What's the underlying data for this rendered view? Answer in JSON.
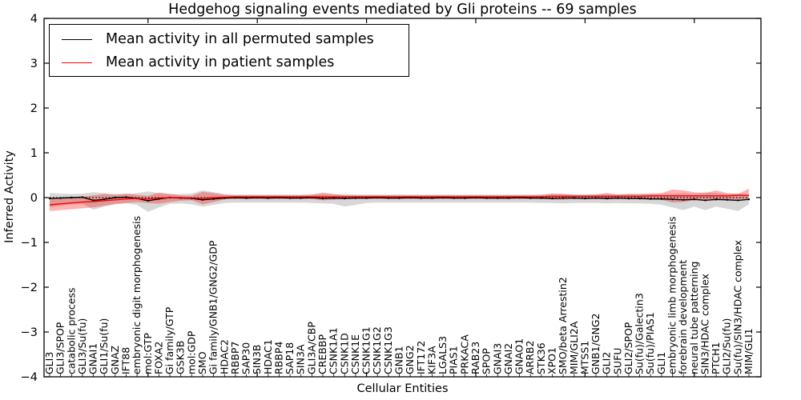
{
  "figure": {
    "title": "Hedgehog signaling events mediated by Gli proteins -- 69 samples",
    "xlabel": "Cellular Entities",
    "ylabel": "Inferred Activity"
  },
  "chart_data": {
    "type": "line",
    "title": "Hedgehog signaling events mediated by Gli proteins -- 69 samples",
    "xlabel": "Cellular Entities",
    "ylabel": "Inferred Activity",
    "ylim": [
      -4,
      4
    ],
    "yticks": [
      4,
      3,
      2,
      1,
      0,
      -1,
      -2,
      -3,
      -4
    ],
    "grid": false,
    "zero_reference_line": true,
    "legend_position": "upper left",
    "categories": [
      "GLI3",
      "GLI3/SPOP",
      "catabolic process",
      "GLI3/Su(fu)",
      "GNAI1",
      "GLI1/Su(fu)",
      "GNAZ",
      "IFT88",
      "embryonic digit morphogenesis",
      "mol:GTP",
      "FOXA2",
      "Gi family/GTP",
      "GSK3B",
      "mol:GDP",
      "SMO",
      "Gi family/GNB1/GNG2/GDP",
      "HDAC2",
      "RBBP7",
      "SAP30",
      "SIN3B",
      "HDAC1",
      "RBBP4",
      "SAP18",
      "SIN3A",
      "GLI3A/CBP",
      "CREBBP",
      "CSNK1A1",
      "CSNK1D",
      "CSNK1E",
      "CSNK1G1",
      "CSNK1G2",
      "CSNK1G3",
      "GNB1",
      "GNG2",
      "IFT172",
      "KIF3A",
      "LGALS3",
      "PIAS1",
      "PRKACA",
      "RAB23",
      "SPOP",
      "GNAI3",
      "GNAI2",
      "GNAO1",
      "ARRB2",
      "STK36",
      "XPO1",
      "SMO/beta Arrestin2",
      "MIM/GLI2A",
      "MTSS1",
      "GNB1/GNG2",
      "GLI2",
      "SUFU",
      "GLI2/SPOP",
      "Su(fu)/Galectin3",
      "Su(fu)/PIAS1",
      "GLI1",
      "embryonic limb morphogenesis",
      "forebrain development",
      "neural tube patterning",
      "SIN3/HDAC complex",
      "PTCH1",
      "GLI2/Su(fu)",
      "Su(fu)/SIN3/HDAC complex",
      "MIM/GLI1"
    ],
    "series": [
      {
        "id": "permuted",
        "name": "Mean activity in all permuted samples",
        "color": "#000000",
        "band_color": "rgba(110,110,110,0.28)",
        "markers": true,
        "values": [
          -0.02,
          -0.01,
          0.0,
          0.01,
          -0.06,
          -0.04,
          0.0,
          0.01,
          -0.02,
          -0.07,
          -0.03,
          0.0,
          -0.01,
          -0.02,
          -0.05,
          -0.03,
          -0.01,
          0.0,
          -0.01,
          0.0,
          -0.01,
          0.0,
          -0.01,
          -0.01,
          0.0,
          -0.02,
          -0.01,
          -0.02,
          -0.01,
          -0.01,
          0.0,
          -0.01,
          -0.01,
          0.0,
          -0.01,
          -0.01,
          0.0,
          -0.01,
          -0.01,
          0.0,
          -0.01,
          -0.01,
          -0.01,
          0.0,
          -0.01,
          -0.01,
          -0.02,
          -0.01,
          -0.01,
          -0.02,
          -0.01,
          -0.02,
          -0.01,
          -0.02,
          -0.02,
          -0.03,
          -0.03,
          -0.04,
          -0.05,
          -0.04,
          -0.06,
          -0.04,
          -0.05,
          -0.06,
          -0.04
        ],
        "upper": [
          0.1,
          0.09,
          0.08,
          0.09,
          0.12,
          0.1,
          0.08,
          0.08,
          0.1,
          0.14,
          0.1,
          0.08,
          0.08,
          0.09,
          0.16,
          0.12,
          0.08,
          0.07,
          0.07,
          0.07,
          0.07,
          0.07,
          0.07,
          0.07,
          0.08,
          0.08,
          0.07,
          0.08,
          0.07,
          0.07,
          0.07,
          0.07,
          0.07,
          0.07,
          0.07,
          0.07,
          0.07,
          0.07,
          0.07,
          0.07,
          0.07,
          0.07,
          0.07,
          0.07,
          0.07,
          0.07,
          0.08,
          0.08,
          0.07,
          0.07,
          0.07,
          0.08,
          0.07,
          0.08,
          0.08,
          0.08,
          0.08,
          0.08,
          0.1,
          0.08,
          0.12,
          0.1,
          0.08,
          0.1,
          0.06
        ],
        "lower": [
          -0.22,
          -0.18,
          -0.15,
          -0.14,
          -0.27,
          -0.2,
          -0.14,
          -0.13,
          -0.16,
          -0.32,
          -0.22,
          -0.14,
          -0.13,
          -0.15,
          -0.2,
          -0.16,
          -0.12,
          -0.11,
          -0.11,
          -0.11,
          -0.11,
          -0.11,
          -0.11,
          -0.11,
          -0.12,
          -0.13,
          -0.14,
          -0.2,
          -0.16,
          -0.12,
          -0.11,
          -0.11,
          -0.11,
          -0.11,
          -0.11,
          -0.11,
          -0.11,
          -0.11,
          -0.11,
          -0.11,
          -0.11,
          -0.11,
          -0.11,
          -0.11,
          -0.11,
          -0.12,
          -0.12,
          -0.13,
          -0.12,
          -0.12,
          -0.12,
          -0.13,
          -0.12,
          -0.13,
          -0.13,
          -0.14,
          -0.16,
          -0.22,
          -0.28,
          -0.2,
          -0.28,
          -0.2,
          -0.25,
          -0.3,
          -0.15
        ]
      },
      {
        "id": "patient",
        "name": "Mean activity in patient samples",
        "color": "#ff0000",
        "band_color": "rgba(255,0,0,0.30)",
        "markers": false,
        "values": [
          -0.16,
          -0.14,
          -0.12,
          -0.1,
          -0.09,
          -0.07,
          -0.05,
          -0.03,
          -0.02,
          -0.03,
          -0.01,
          0.0,
          0.0,
          -0.01,
          -0.02,
          0.0,
          0.01,
          0.02,
          0.02,
          0.02,
          0.02,
          0.02,
          0.02,
          0.02,
          0.02,
          0.02,
          0.02,
          0.02,
          0.02,
          0.02,
          0.02,
          0.02,
          0.02,
          0.02,
          0.02,
          0.02,
          0.02,
          0.02,
          0.02,
          0.02,
          0.02,
          0.02,
          0.02,
          0.02,
          0.02,
          0.02,
          0.03,
          0.03,
          0.03,
          0.03,
          0.03,
          0.03,
          0.03,
          0.03,
          0.03,
          0.04,
          0.04,
          0.04,
          0.04,
          0.04,
          0.04,
          0.04,
          0.04,
          0.05,
          0.05
        ],
        "upper": [
          -0.03,
          -0.02,
          0.0,
          0.02,
          0.05,
          0.08,
          0.06,
          0.09,
          0.06,
          0.04,
          0.11,
          0.08,
          0.05,
          0.04,
          0.13,
          0.1,
          0.06,
          0.05,
          0.05,
          0.05,
          0.05,
          0.05,
          0.05,
          0.05,
          0.06,
          0.11,
          0.08,
          0.05,
          0.05,
          0.05,
          0.05,
          0.05,
          0.05,
          0.05,
          0.05,
          0.05,
          0.05,
          0.05,
          0.05,
          0.05,
          0.05,
          0.05,
          0.05,
          0.05,
          0.05,
          0.06,
          0.09,
          0.08,
          0.06,
          0.06,
          0.07,
          0.1,
          0.07,
          0.08,
          0.08,
          0.09,
          0.1,
          0.18,
          0.16,
          0.12,
          0.1,
          0.16,
          0.1,
          0.08,
          0.2
        ],
        "lower": [
          -0.3,
          -0.28,
          -0.26,
          -0.24,
          -0.22,
          -0.18,
          -0.15,
          -0.12,
          -0.1,
          -0.12,
          -0.14,
          -0.1,
          -0.07,
          -0.06,
          -0.15,
          -0.1,
          -0.04,
          -0.03,
          -0.03,
          -0.03,
          -0.03,
          -0.03,
          -0.03,
          -0.03,
          -0.03,
          -0.06,
          -0.05,
          -0.03,
          -0.03,
          -0.03,
          -0.03,
          -0.03,
          -0.03,
          -0.03,
          -0.03,
          -0.03,
          -0.03,
          -0.03,
          -0.03,
          -0.03,
          -0.03,
          -0.03,
          -0.03,
          -0.03,
          -0.03,
          -0.03,
          -0.04,
          -0.05,
          -0.03,
          -0.03,
          -0.03,
          -0.04,
          -0.03,
          -0.03,
          -0.04,
          -0.04,
          -0.05,
          -0.11,
          -0.1,
          -0.06,
          -0.05,
          -0.07,
          -0.05,
          -0.04,
          -0.02
        ]
      }
    ],
    "legend": [
      "Mean activity in all permuted samples",
      "Mean activity in patient samples"
    ]
  }
}
